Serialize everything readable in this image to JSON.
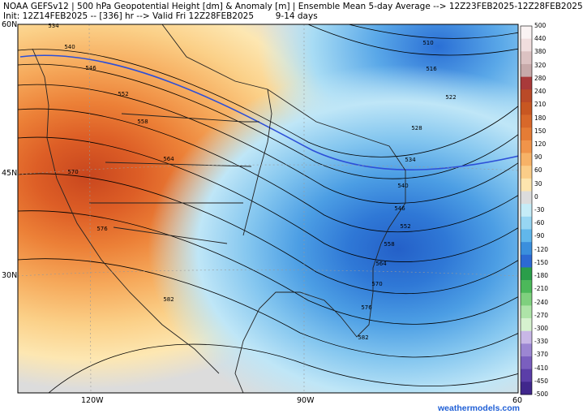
{
  "header": {
    "line1": "NOAA GEFSv12 | 500 hPa Geopotential Height [dm] & Anomaly [m] | Ensemble Mean 5-day Average --> 12Z23FEB2025-12Z28FEB2025",
    "line2": "Init: 12Z14FEB2025 -- [336] hr --> Valid Fri 12Z28FEB2025        9-14 days"
  },
  "axes": {
    "lat_labels": [
      "60N",
      "45N",
      "30N"
    ],
    "lon_labels": [
      "120W",
      "90W",
      "60"
    ]
  },
  "colorbar": {
    "values": [
      "500",
      "440",
      "380",
      "320",
      "280",
      "240",
      "210",
      "180",
      "150",
      "120",
      "90",
      "60",
      "30",
      "0",
      "-30",
      "-60",
      "-90",
      "-120",
      "-150",
      "-180",
      "-210",
      "-240",
      "-270",
      "-300",
      "-330",
      "-370",
      "-410",
      "-450",
      "-500"
    ],
    "colors": [
      "#faf3f3",
      "#f1dede",
      "#dcc2c2",
      "#c7a9a9",
      "#a93a3a",
      "#ba4a28",
      "#c85722",
      "#d8682a",
      "#e57c35",
      "#f0944a",
      "#f7b267",
      "#fbcd88",
      "#fde5ae",
      "#dcdcdc",
      "#c5ecf7",
      "#97d6f3",
      "#61b7eb",
      "#3a8fdd",
      "#2c6ad3",
      "#2a9e4a",
      "#4cb85a",
      "#7fd07e",
      "#aee4a8",
      "#d6f2cf",
      "#c8b7e6",
      "#9c86d2",
      "#7a5fbf",
      "#5b3ea8",
      "#40278c"
    ]
  },
  "contour_labels": [
    "534",
    "540",
    "546",
    "552",
    "558",
    "564",
    "570",
    "576",
    "582",
    "510",
    "516",
    "522",
    "528",
    "534",
    "540",
    "546",
    "552",
    "558",
    "564",
    "570",
    "576",
    "582"
  ],
  "credit": "weathermodels.com"
}
